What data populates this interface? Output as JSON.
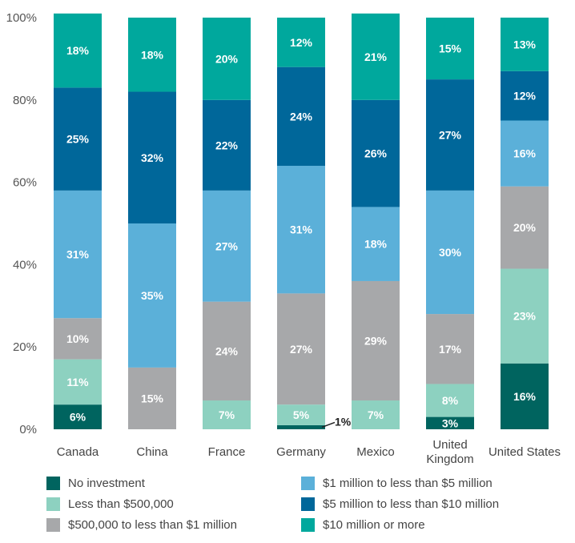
{
  "chart_data": {
    "type": "bar",
    "stacked": true,
    "categories": [
      "Canada",
      "China",
      "France",
      "Germany",
      "Mexico",
      "United Kingdom",
      "United States"
    ],
    "category_lines": [
      [
        "Canada"
      ],
      [
        "China"
      ],
      [
        "France"
      ],
      [
        "Germany"
      ],
      [
        "Mexico"
      ],
      [
        "United",
        "Kingdom"
      ],
      [
        "United States"
      ]
    ],
    "series": [
      {
        "name": "No investment",
        "color": "#00645f",
        "label_color": "#ffffff",
        "values": [
          6,
          0,
          0,
          1,
          0,
          3,
          16
        ],
        "labels": [
          "6%",
          "",
          "",
          "1%",
          "",
          "3%",
          "16%"
        ]
      },
      {
        "name": "Less than $500,000",
        "color": "#8dd1c0",
        "label_color": "#ffffff",
        "values": [
          11,
          0,
          7,
          5,
          7,
          8,
          23
        ],
        "labels": [
          "11%",
          "",
          "7%",
          "5%",
          "7%",
          "8%",
          "23%"
        ]
      },
      {
        "name": "$500,000 to less than $1 million",
        "color": "#a7a8aa",
        "label_color": "#ffffff",
        "values": [
          10,
          15,
          24,
          27,
          29,
          17,
          20
        ],
        "labels": [
          "10%",
          "15%",
          "24%",
          "27%",
          "29%",
          "17%",
          "20%"
        ]
      },
      {
        "name": "$1 million to less than $5 million",
        "color": "#5bb0d9",
        "label_color": "#ffffff",
        "values": [
          31,
          35,
          27,
          31,
          18,
          30,
          16
        ],
        "labels": [
          "31%",
          "35%",
          "27%",
          "31%",
          "18%",
          "30%",
          "16%"
        ]
      },
      {
        "name": "$5 million to less than $10 million",
        "color": "#00679a",
        "label_color": "#ffffff",
        "values": [
          25,
          32,
          22,
          24,
          26,
          27,
          12
        ],
        "labels": [
          "25%",
          "32%",
          "22%",
          "24%",
          "26%",
          "27%",
          "12%"
        ]
      },
      {
        "name": "$10 million or more",
        "color": "#00a89d",
        "label_color": "#ffffff",
        "values": [
          18,
          18,
          20,
          12,
          21,
          15,
          13
        ],
        "labels": [
          "18%",
          "18%",
          "20%",
          "12%",
          "21%",
          "15%",
          "13%"
        ]
      }
    ],
    "yticks": [
      "0%",
      "20%",
      "40%",
      "60%",
      "80%",
      "100%"
    ],
    "ylim": [
      0,
      100
    ],
    "title": "",
    "xlabel": "",
    "ylabel": "",
    "grid": false,
    "legend_position": "bottom"
  }
}
